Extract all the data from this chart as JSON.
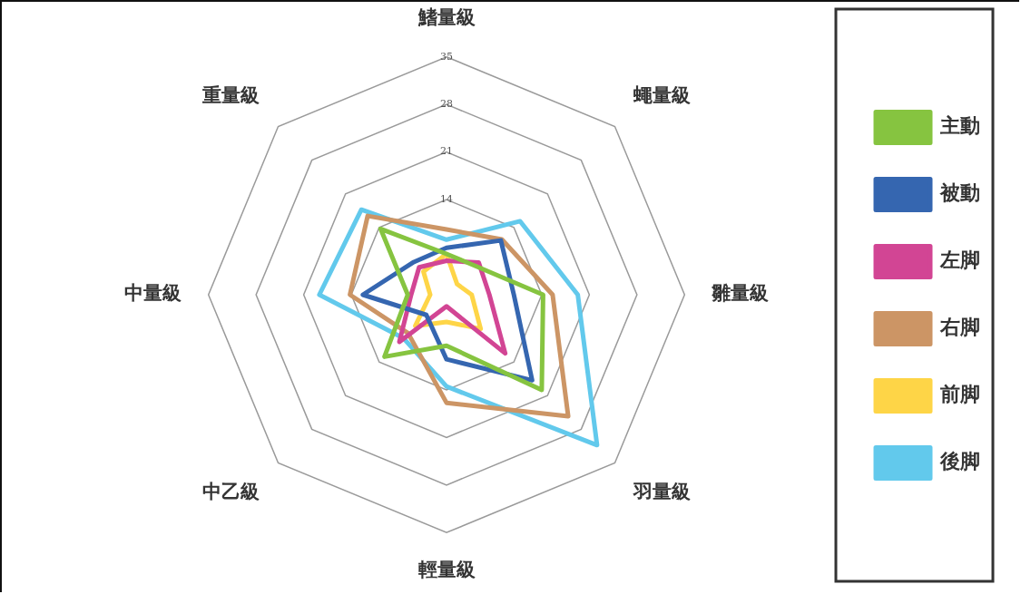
{
  "chart_data": {
    "type": "radar",
    "categories": [
      "鰭量級",
      "蠅量級",
      "雛量級",
      "羽量級",
      "輕量級",
      "中乙級",
      "中量級",
      "重量級"
    ],
    "series": [
      {
        "name": "主動",
        "color": "#86c440",
        "values": [
          6,
          6,
          14.2,
          19.8,
          7.5,
          12.9,
          5.7,
          13.7
        ]
      },
      {
        "name": "被動",
        "color": "#3566b0",
        "values": [
          6.9,
          11.3,
          9.9,
          17.8,
          9.5,
          4.2,
          12.3,
          6.8
        ]
      },
      {
        "name": "左脚",
        "color": "#d24594",
        "values": [
          5,
          6.7,
          6.3,
          12.2,
          1.7,
          9.8,
          5.2,
          5.7
        ]
      },
      {
        "name": "右脚",
        "color": "#cc9565",
        "values": [
          9.6,
          11.5,
          15.6,
          25.3,
          15.9,
          8,
          14.2,
          16.4
        ]
      },
      {
        "name": "前脚",
        "color": "#fed547",
        "values": [
          6,
          2.2,
          3.7,
          7.1,
          4,
          6.5,
          2.4,
          4.8
        ]
      },
      {
        "name": "後脚",
        "color": "#62c9ec",
        "values": [
          8.1,
          15.3,
          19.3,
          31.3,
          13.5,
          9,
          18.7,
          17.7
        ]
      }
    ],
    "ylim": [
      0,
      35
    ],
    "yticks": [
      14,
      21,
      28,
      35
    ],
    "grid": true,
    "legend": "right",
    "marker": "none",
    "line_style": "solid"
  }
}
